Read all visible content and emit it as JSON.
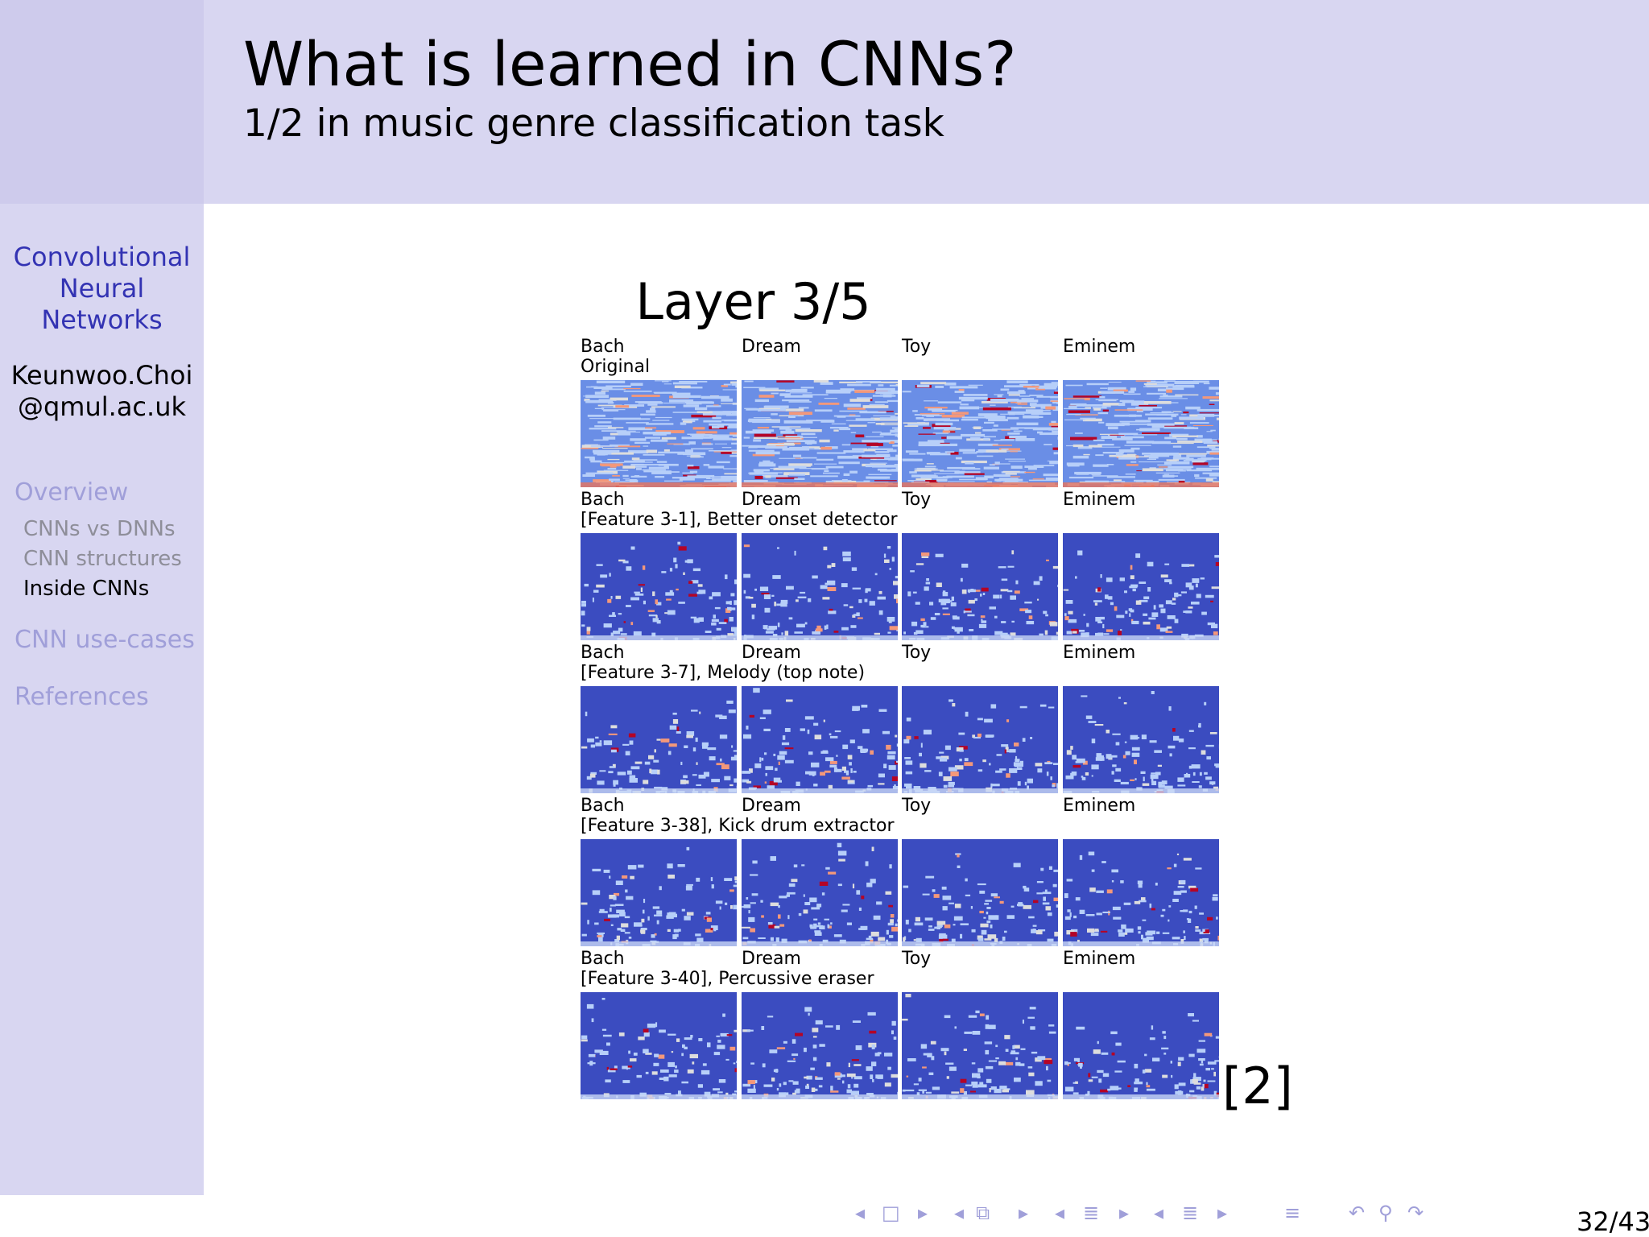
{
  "header": {
    "title": "What is learned in CNNs?",
    "subtitle": "1/2 in music genre classification task"
  },
  "sidebar": {
    "title_lines": [
      "Convolutional",
      "Neural",
      "Networks"
    ],
    "author_lines": [
      "Keunwoo.Choi",
      "@qmul.ac.uk"
    ],
    "sections": [
      {
        "label": "Overview",
        "subitems": [
          "CNNs vs DNNs",
          "CNN structures",
          "Inside CNNs"
        ],
        "active_subitem": "Inside CNNs"
      },
      {
        "label": "CNN use-cases"
      },
      {
        "label": "References"
      }
    ]
  },
  "figure": {
    "title": "Layer 3/5",
    "columns": [
      "Bach",
      "Dream",
      "Toy",
      "Eminem"
    ],
    "rows": [
      {
        "caption": "Original"
      },
      {
        "caption": "[Feature 3-1], Better onset detector"
      },
      {
        "caption": "[Feature 3-7], Melody (top note)"
      },
      {
        "caption": "[Feature 3-38], Kick drum extractor"
      },
      {
        "caption": "[Feature 3-40], Percussive eraser"
      }
    ],
    "citation": "[2]",
    "colors": {
      "background": "#3b4cc0",
      "mid": "#dddddd",
      "hot": "#b40426"
    }
  },
  "footer": {
    "page_number": "32/43",
    "nav_icons": [
      "arrow-left-icon",
      "frame-icon",
      "arrow-right-icon",
      "subsection-icon",
      "section-icon",
      "toc-icon",
      "back-icon",
      "search-icon",
      "forward-icon"
    ]
  }
}
